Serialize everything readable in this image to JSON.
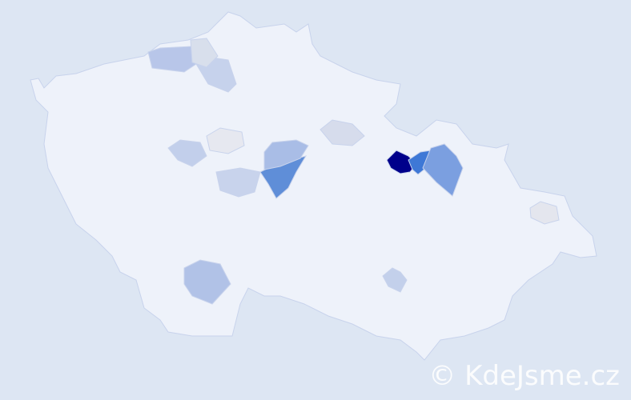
{
  "map": {
    "country_fill": "#eef2fa",
    "border_color": "#c8d3ec",
    "background": "#dde6f3",
    "highlighted_districts": [
      {
        "color": "#00008b"
      },
      {
        "color": "#3e78d6"
      },
      {
        "color": "#7b9fe0"
      },
      {
        "color": "#5f8ed8"
      },
      {
        "color": "#a9bde6"
      },
      {
        "color": "#b1c2e7"
      },
      {
        "color": "#b8c6e9"
      },
      {
        "color": "#c6d2ec"
      },
      {
        "color": "#c8d3ec"
      },
      {
        "color": "#c2cfeb"
      },
      {
        "color": "#d6dcec"
      },
      {
        "color": "#d8dfec"
      },
      {
        "color": "#e6e8f0"
      },
      {
        "color": "#e4e6ee"
      },
      {
        "color": "#c3d0eb"
      }
    ]
  },
  "watermark": {
    "text": "© KdeJsme.cz"
  }
}
